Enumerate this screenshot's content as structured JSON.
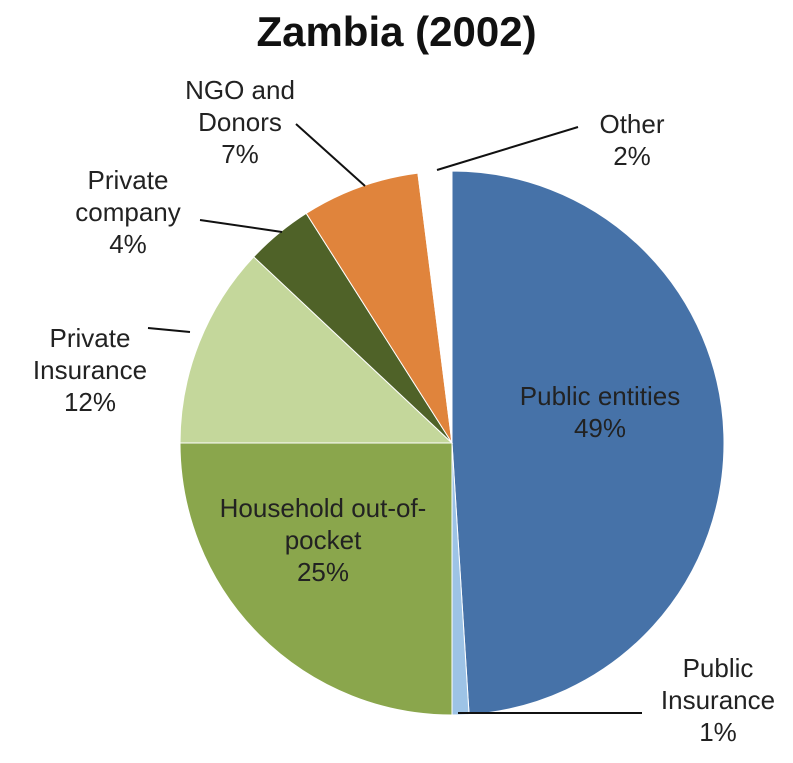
{
  "chart_data": {
    "type": "pie",
    "title": "Zambia (2002)",
    "categories": [
      "Public entities",
      "Public Insurance",
      "Household out-of-pocket",
      "Private Insurance",
      "Private company",
      "NGO and Donors",
      "Other"
    ],
    "values": [
      49,
      1,
      25,
      12,
      4,
      7,
      2
    ],
    "value_labels": [
      "49%",
      "1%",
      "25%",
      "12%",
      "4%",
      "7%",
      "2%"
    ],
    "colors": [
      "#4672a8",
      "#9dc3e6",
      "#8aa64c",
      "#c4d79b",
      "#4f6228",
      "#e0843c",
      "#ffffff"
    ]
  }
}
